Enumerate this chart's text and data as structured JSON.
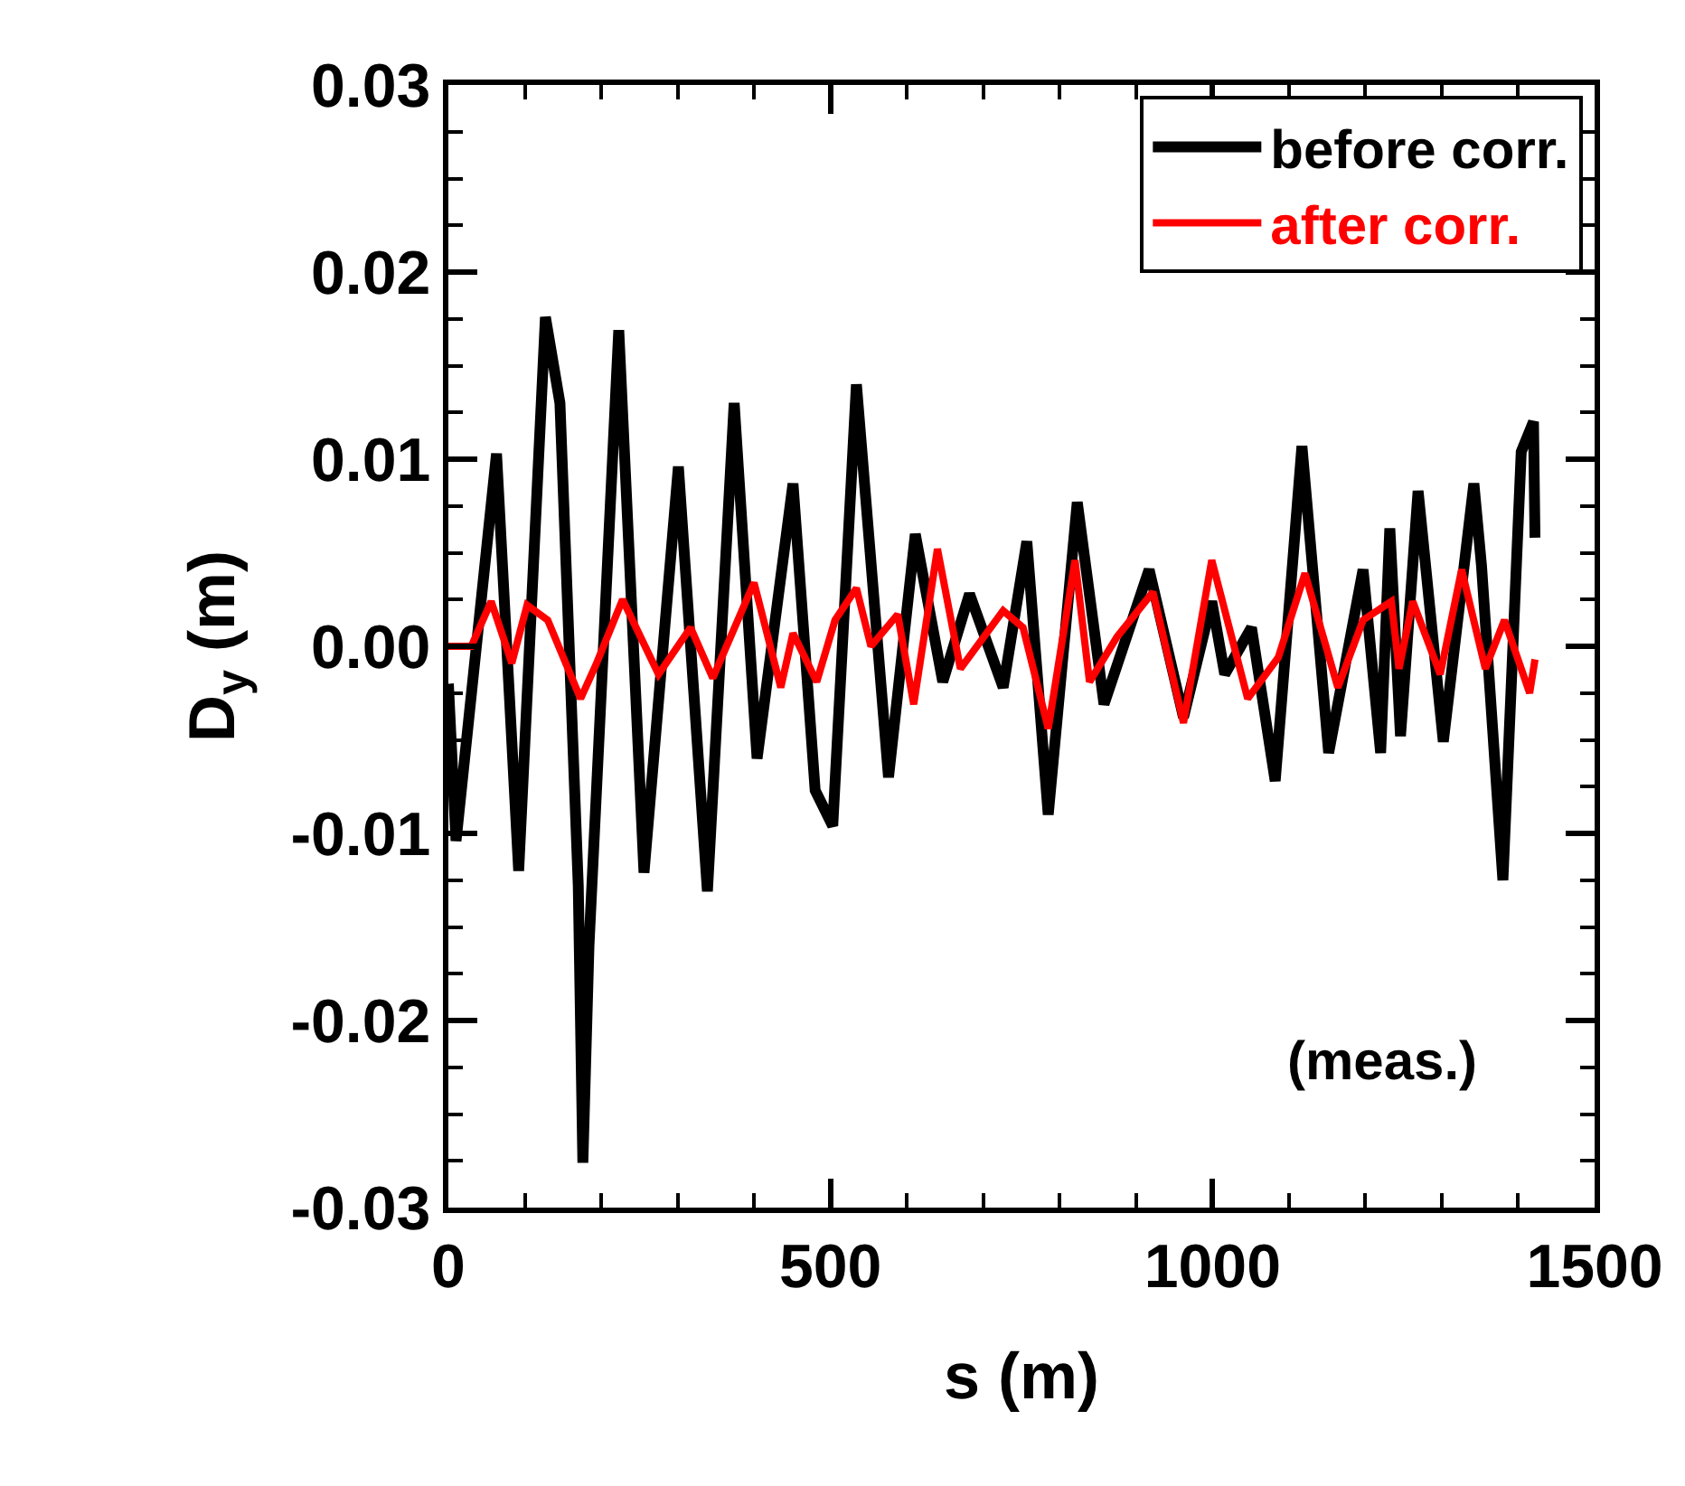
{
  "chart_data": {
    "type": "line",
    "xlabel": "s (m)",
    "ylabel": "D$_{y}$ (m)",
    "xlim": [
      0,
      1500
    ],
    "xticks": [
      0,
      500,
      1000,
      1500
    ],
    "ylim": [
      -0.03,
      0.03
    ],
    "yticks": [
      -0.03,
      -0.02,
      -0.01,
      {
        "value": 0,
        "label": "0.00"
      },
      0.01,
      0.02,
      0.03
    ],
    "legend": "top right",
    "marker": "none",
    "line_style": "solid",
    "annotations": [
      "(meas.)"
    ],
    "series": [
      {
        "name": "before corr.",
        "color": "#000000",
        "x": [
          0,
          10,
          63,
          92,
          127,
          146,
          170,
          176,
          184,
          223,
          256,
          301,
          339,
          374,
          404,
          451,
          480,
          503,
          534,
          576,
          611,
          647,
          682,
          726,
          757,
          785,
          823,
          858,
          917,
          962,
          999,
          1016,
          1051,
          1082,
          1117,
          1152,
          1197,
          1220,
          1232,
          1246,
          1269,
          1302,
          1342,
          1352,
          1380,
          1404,
          1420,
          1422
        ],
        "values": [
          -0.002,
          -0.0104,
          0.0103,
          -0.012,
          0.0176,
          0.013,
          -0.0128,
          -0.0276,
          -0.016,
          0.0169,
          -0.0121,
          0.0096,
          -0.0131,
          0.013,
          -0.006,
          0.0087,
          -0.0077,
          -0.0096,
          0.014,
          -0.007,
          0.006,
          -0.0019,
          0.0028,
          -0.0022,
          0.0056,
          -0.009,
          0.0077,
          -0.0031,
          0.0041,
          -0.0038,
          0.0024,
          -0.0015,
          0.001,
          -0.0072,
          0.0107,
          -0.0057,
          0.0041,
          -0.0057,
          0.0063,
          -0.0048,
          0.0083,
          -0.0051,
          0.0087,
          0.0043,
          -0.0125,
          0.0104,
          0.012,
          0.0058
        ]
      },
      {
        "name": "after corr.",
        "color": "#ff0000",
        "x": [
          0,
          30,
          56,
          83,
          103,
          130,
          173,
          193,
          228,
          275,
          317,
          346,
          400,
          435,
          451,
          482,
          506,
          534,
          553,
          588,
          609,
          640,
          670,
          726,
          752,
          785,
          820,
          839,
          875,
          922,
          962,
          999,
          1046,
          1086,
          1121,
          1164,
          1197,
          1234,
          1244,
          1262,
          1298,
          1326,
          1357,
          1382,
          1415,
          1422
        ],
        "values": [
          0,
          0,
          0.0024,
          -0.0009,
          0.0022,
          0.0014,
          -0.0028,
          -0.001,
          0.0025,
          -0.0015,
          0.001,
          -0.0017,
          0.0034,
          -0.0022,
          0.0007,
          -0.0019,
          0.0014,
          0.0031,
          0,
          0.0017,
          -0.0031,
          0.0052,
          -0.0012,
          0.0019,
          0.001,
          -0.0044,
          0.0046,
          -0.0019,
          0.0005,
          0.0029,
          -0.0041,
          0.0046,
          -0.0028,
          -0.0006,
          0.0039,
          -0.0022,
          0.0014,
          0.0024,
          -0.0012,
          0.0024,
          -0.0015,
          0.0041,
          -0.0012,
          0.0014,
          -0.0025,
          -0.0007
        ]
      }
    ]
  }
}
